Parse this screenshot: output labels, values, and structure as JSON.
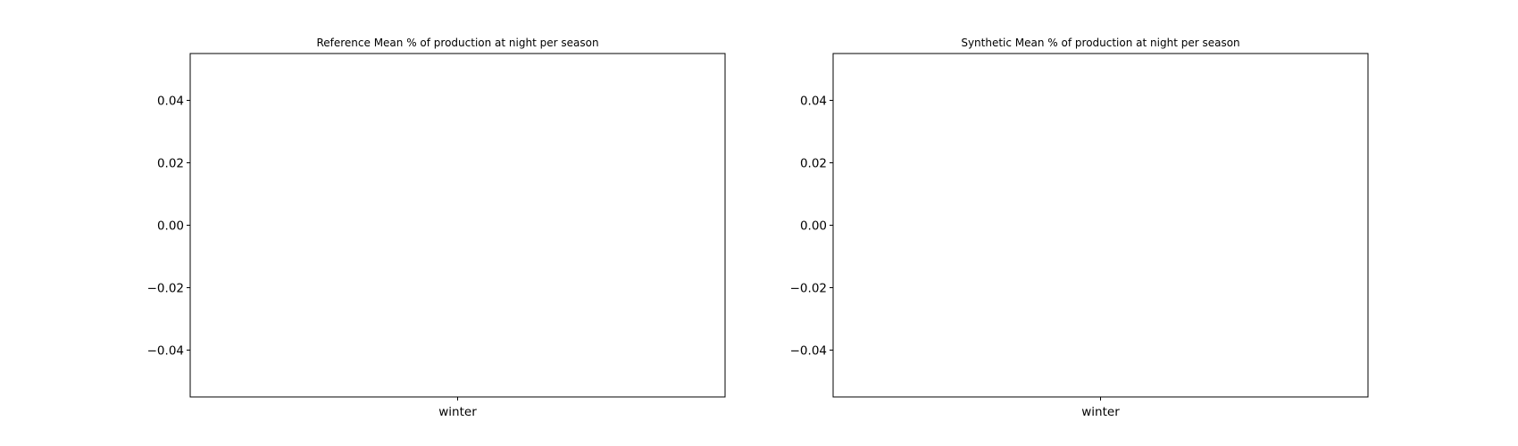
{
  "chart_data": [
    {
      "type": "bar",
      "title": "Reference Mean % of production at night per season",
      "xlabel": "",
      "ylabel": "",
      "categories": [
        "winter"
      ],
      "values": [
        0
      ],
      "ylim": [
        -0.055,
        0.055
      ],
      "yticks": [
        0.04,
        0.02,
        0.0,
        -0.02,
        -0.04
      ],
      "ytick_labels": [
        "0.04",
        "0.02",
        "0.00",
        "−0.02",
        "−0.04"
      ],
      "grid": false,
      "legend": "none"
    },
    {
      "type": "bar",
      "title": "Synthetic Mean % of production at night per season",
      "xlabel": "",
      "ylabel": "",
      "categories": [
        "winter"
      ],
      "values": [
        0
      ],
      "ylim": [
        -0.055,
        0.055
      ],
      "yticks": [
        0.04,
        0.02,
        0.0,
        -0.02,
        -0.04
      ],
      "ytick_labels": [
        "0.04",
        "0.02",
        "0.00",
        "−0.02",
        "−0.04"
      ],
      "grid": false,
      "legend": "none"
    }
  ]
}
